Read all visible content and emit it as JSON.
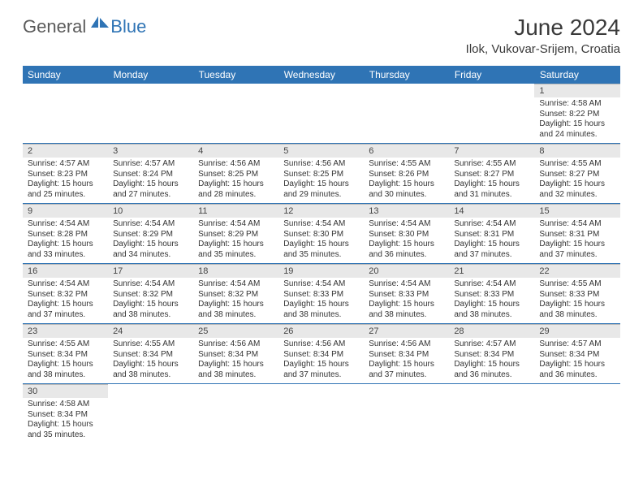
{
  "logo": {
    "general": "General",
    "blue": "Blue"
  },
  "title": {
    "month": "June 2024",
    "location": "Ilok, Vukovar-Srijem, Croatia"
  },
  "colors": {
    "header_bg": "#2f74b5",
    "header_text": "#ffffff",
    "daynum_bg": "#e8e8e8",
    "cell_border": "#2f74b5",
    "body_text": "#333333",
    "logo_gray": "#5a5a5a",
    "logo_blue": "#2f74b5"
  },
  "weekdays": [
    "Sunday",
    "Monday",
    "Tuesday",
    "Wednesday",
    "Thursday",
    "Friday",
    "Saturday"
  ],
  "days": {
    "1": {
      "sunrise": "4:58 AM",
      "sunset": "8:22 PM",
      "daylight": "15 hours and 24 minutes."
    },
    "2": {
      "sunrise": "4:57 AM",
      "sunset": "8:23 PM",
      "daylight": "15 hours and 25 minutes."
    },
    "3": {
      "sunrise": "4:57 AM",
      "sunset": "8:24 PM",
      "daylight": "15 hours and 27 minutes."
    },
    "4": {
      "sunrise": "4:56 AM",
      "sunset": "8:25 PM",
      "daylight": "15 hours and 28 minutes."
    },
    "5": {
      "sunrise": "4:56 AM",
      "sunset": "8:25 PM",
      "daylight": "15 hours and 29 minutes."
    },
    "6": {
      "sunrise": "4:55 AM",
      "sunset": "8:26 PM",
      "daylight": "15 hours and 30 minutes."
    },
    "7": {
      "sunrise": "4:55 AM",
      "sunset": "8:27 PM",
      "daylight": "15 hours and 31 minutes."
    },
    "8": {
      "sunrise": "4:55 AM",
      "sunset": "8:27 PM",
      "daylight": "15 hours and 32 minutes."
    },
    "9": {
      "sunrise": "4:54 AM",
      "sunset": "8:28 PM",
      "daylight": "15 hours and 33 minutes."
    },
    "10": {
      "sunrise": "4:54 AM",
      "sunset": "8:29 PM",
      "daylight": "15 hours and 34 minutes."
    },
    "11": {
      "sunrise": "4:54 AM",
      "sunset": "8:29 PM",
      "daylight": "15 hours and 35 minutes."
    },
    "12": {
      "sunrise": "4:54 AM",
      "sunset": "8:30 PM",
      "daylight": "15 hours and 35 minutes."
    },
    "13": {
      "sunrise": "4:54 AM",
      "sunset": "8:30 PM",
      "daylight": "15 hours and 36 minutes."
    },
    "14": {
      "sunrise": "4:54 AM",
      "sunset": "8:31 PM",
      "daylight": "15 hours and 37 minutes."
    },
    "15": {
      "sunrise": "4:54 AM",
      "sunset": "8:31 PM",
      "daylight": "15 hours and 37 minutes."
    },
    "16": {
      "sunrise": "4:54 AM",
      "sunset": "8:32 PM",
      "daylight": "15 hours and 37 minutes."
    },
    "17": {
      "sunrise": "4:54 AM",
      "sunset": "8:32 PM",
      "daylight": "15 hours and 38 minutes."
    },
    "18": {
      "sunrise": "4:54 AM",
      "sunset": "8:32 PM",
      "daylight": "15 hours and 38 minutes."
    },
    "19": {
      "sunrise": "4:54 AM",
      "sunset": "8:33 PM",
      "daylight": "15 hours and 38 minutes."
    },
    "20": {
      "sunrise": "4:54 AM",
      "sunset": "8:33 PM",
      "daylight": "15 hours and 38 minutes."
    },
    "21": {
      "sunrise": "4:54 AM",
      "sunset": "8:33 PM",
      "daylight": "15 hours and 38 minutes."
    },
    "22": {
      "sunrise": "4:55 AM",
      "sunset": "8:33 PM",
      "daylight": "15 hours and 38 minutes."
    },
    "23": {
      "sunrise": "4:55 AM",
      "sunset": "8:34 PM",
      "daylight": "15 hours and 38 minutes."
    },
    "24": {
      "sunrise": "4:55 AM",
      "sunset": "8:34 PM",
      "daylight": "15 hours and 38 minutes."
    },
    "25": {
      "sunrise": "4:56 AM",
      "sunset": "8:34 PM",
      "daylight": "15 hours and 38 minutes."
    },
    "26": {
      "sunrise": "4:56 AM",
      "sunset": "8:34 PM",
      "daylight": "15 hours and 37 minutes."
    },
    "27": {
      "sunrise": "4:56 AM",
      "sunset": "8:34 PM",
      "daylight": "15 hours and 37 minutes."
    },
    "28": {
      "sunrise": "4:57 AM",
      "sunset": "8:34 PM",
      "daylight": "15 hours and 36 minutes."
    },
    "29": {
      "sunrise": "4:57 AM",
      "sunset": "8:34 PM",
      "daylight": "15 hours and 36 minutes."
    },
    "30": {
      "sunrise": "4:58 AM",
      "sunset": "8:34 PM",
      "daylight": "15 hours and 35 minutes."
    }
  },
  "labels": {
    "sunrise": "Sunrise:",
    "sunset": "Sunset:",
    "daylight": "Daylight:"
  },
  "grid": [
    [
      null,
      null,
      null,
      null,
      null,
      null,
      "1"
    ],
    [
      "2",
      "3",
      "4",
      "5",
      "6",
      "7",
      "8"
    ],
    [
      "9",
      "10",
      "11",
      "12",
      "13",
      "14",
      "15"
    ],
    [
      "16",
      "17",
      "18",
      "19",
      "20",
      "21",
      "22"
    ],
    [
      "23",
      "24",
      "25",
      "26",
      "27",
      "28",
      "29"
    ],
    [
      "30",
      null,
      null,
      null,
      null,
      null,
      null
    ]
  ]
}
